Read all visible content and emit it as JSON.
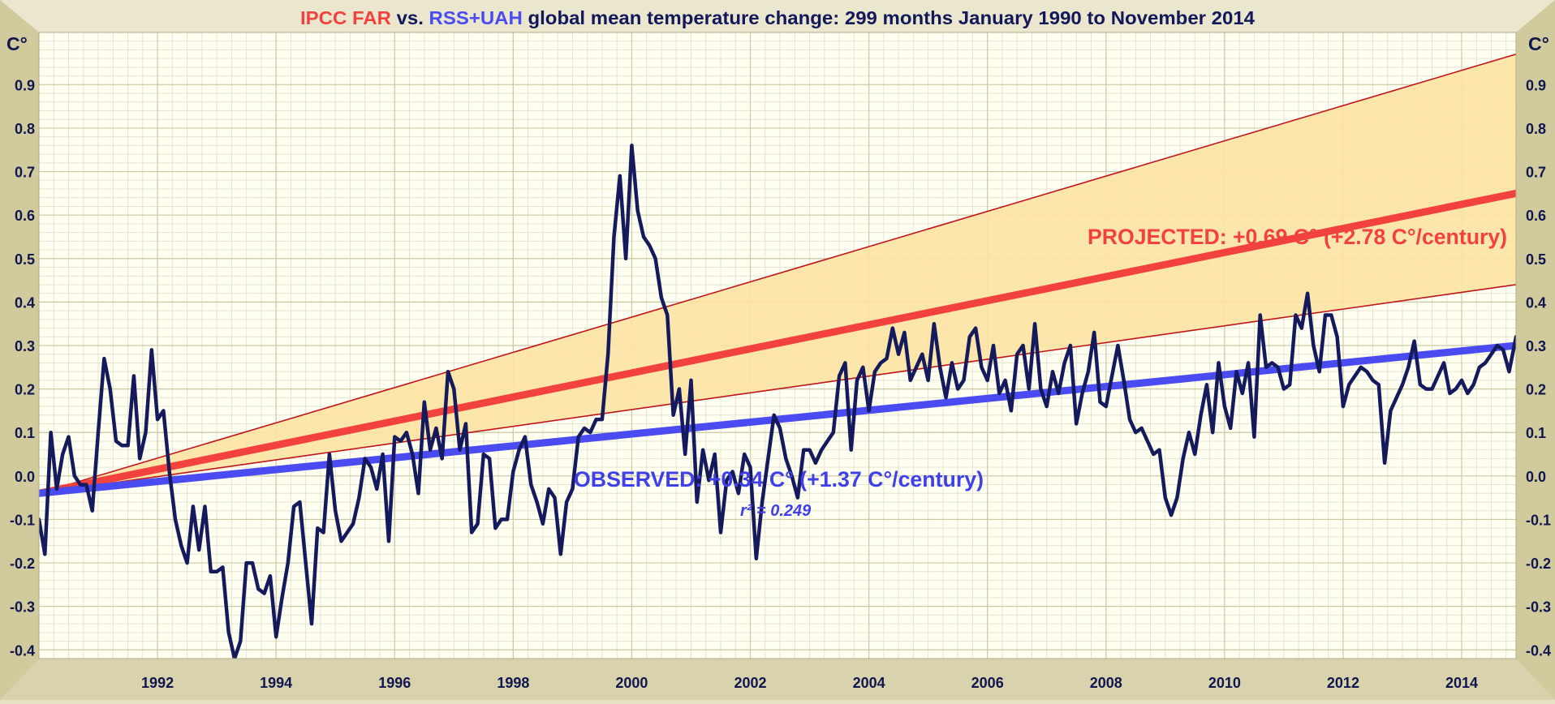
{
  "title": {
    "part1": "IPCC FAR",
    "part2": " vs. ",
    "part3": "RSS+UAH",
    "part4": " global mean temperature change: 299 months January 1990 to November 2014"
  },
  "unit_label": "C°",
  "colors": {
    "frame": "#d2cc9f",
    "plot_bg": "#fffff2",
    "grid_minor": "#e6e4cf",
    "grid_major": "#cdc9a5",
    "band_fill": "#fde3a3",
    "band_edge": "#c0141b",
    "projection": "#f2423d",
    "observed_trend": "#4b4bf2",
    "observed_series": "#141a5c",
    "axis_text": "#10164f",
    "title_red": "#f2423d",
    "title_blue": "#4b4bf2",
    "title_navy": "#12185a",
    "annotation_blue": "#4040e8"
  },
  "chart_data": {
    "type": "line",
    "title": "IPCC FAR vs. RSS+UAH global mean temperature change: 299 months January 1990 to November 2014",
    "xlabel": "",
    "ylabel": "C°",
    "xlim": [
      1990.0,
      2014.917
    ],
    "ylim": [
      -0.42,
      1.02
    ],
    "grid": true,
    "x_ticks": [
      "1992",
      "1994",
      "1996",
      "1998",
      "2000",
      "2002",
      "2004",
      "2006",
      "2008",
      "2010",
      "2012",
      "2014"
    ],
    "y_ticks": [
      "-0.4",
      "-0.3",
      "-0.2",
      "-0.1",
      "0.0",
      "0.1",
      "0.2",
      "0.3",
      "0.4",
      "0.5",
      "0.6",
      "0.7",
      "0.8",
      "0.9"
    ],
    "projection_band": {
      "upper": [
        [
          1990.0,
          -0.04
        ],
        [
          2014.917,
          0.97
        ]
      ],
      "lower": [
        [
          1990.0,
          -0.04
        ],
        [
          2014.917,
          0.44
        ]
      ]
    },
    "projection_trend": [
      [
        1990.0,
        -0.04
      ],
      [
        2014.917,
        0.65
      ]
    ],
    "observed_trend": [
      [
        1990.0,
        -0.04
      ],
      [
        2014.917,
        0.3
      ]
    ],
    "series": [
      {
        "points": [
          [
            1990.0,
            -0.1
          ],
          [
            1990.1,
            -0.18
          ],
          [
            1990.2,
            0.1
          ],
          [
            1990.3,
            -0.03
          ],
          [
            1990.4,
            0.05
          ],
          [
            1990.5,
            0.09
          ],
          [
            1990.6,
            0.0
          ],
          [
            1990.7,
            -0.02
          ],
          [
            1990.8,
            -0.02
          ],
          [
            1990.9,
            -0.08
          ],
          [
            1991.0,
            0.1
          ],
          [
            1991.1,
            0.27
          ],
          [
            1991.2,
            0.2
          ],
          [
            1991.3,
            0.08
          ],
          [
            1991.4,
            0.07
          ],
          [
            1991.5,
            0.07
          ],
          [
            1991.6,
            0.23
          ],
          [
            1991.7,
            0.04
          ],
          [
            1991.8,
            0.1
          ],
          [
            1991.9,
            0.29
          ],
          [
            1992.0,
            0.13
          ],
          [
            1992.1,
            0.15
          ],
          [
            1992.2,
            0.01
          ],
          [
            1992.3,
            -0.1
          ],
          [
            1992.4,
            -0.16
          ],
          [
            1992.5,
            -0.2
          ],
          [
            1992.6,
            -0.07
          ],
          [
            1992.7,
            -0.17
          ],
          [
            1992.8,
            -0.07
          ],
          [
            1992.9,
            -0.22
          ],
          [
            1993.0,
            -0.22
          ],
          [
            1993.1,
            -0.21
          ],
          [
            1993.2,
            -0.36
          ],
          [
            1993.3,
            -0.42
          ],
          [
            1993.4,
            -0.38
          ],
          [
            1993.5,
            -0.2
          ],
          [
            1993.6,
            -0.2
          ],
          [
            1993.7,
            -0.26
          ],
          [
            1993.8,
            -0.27
          ],
          [
            1993.9,
            -0.23
          ],
          [
            1994.0,
            -0.37
          ],
          [
            1994.1,
            -0.28
          ],
          [
            1994.2,
            -0.2
          ],
          [
            1994.3,
            -0.07
          ],
          [
            1994.4,
            -0.06
          ],
          [
            1994.5,
            -0.2
          ],
          [
            1994.6,
            -0.34
          ],
          [
            1994.7,
            -0.12
          ],
          [
            1994.8,
            -0.13
          ],
          [
            1994.9,
            0.05
          ],
          [
            1995.0,
            -0.08
          ],
          [
            1995.1,
            -0.15
          ],
          [
            1995.2,
            -0.13
          ],
          [
            1995.3,
            -0.11
          ],
          [
            1995.4,
            -0.05
          ],
          [
            1995.5,
            0.04
          ],
          [
            1995.6,
            0.02
          ],
          [
            1995.7,
            -0.03
          ],
          [
            1995.8,
            0.05
          ],
          [
            1995.9,
            -0.15
          ],
          [
            1996.0,
            0.09
          ],
          [
            1996.1,
            0.08
          ],
          [
            1996.2,
            0.1
          ],
          [
            1996.3,
            0.05
          ],
          [
            1996.4,
            -0.04
          ],
          [
            1996.5,
            0.17
          ],
          [
            1996.6,
            0.06
          ],
          [
            1996.7,
            0.11
          ],
          [
            1996.8,
            0.04
          ],
          [
            1996.9,
            0.24
          ],
          [
            1997.0,
            0.2
          ],
          [
            1997.1,
            0.06
          ],
          [
            1997.2,
            0.12
          ],
          [
            1997.3,
            -0.13
          ],
          [
            1997.4,
            -0.11
          ],
          [
            1997.5,
            0.05
          ],
          [
            1997.6,
            0.04
          ],
          [
            1997.7,
            -0.12
          ],
          [
            1997.8,
            -0.1
          ],
          [
            1997.9,
            -0.1
          ],
          [
            1998.0,
            0.01
          ],
          [
            1998.1,
            0.06
          ],
          [
            1998.2,
            0.09
          ],
          [
            1998.3,
            -0.02
          ],
          [
            1998.4,
            -0.06
          ],
          [
            1998.5,
            -0.11
          ],
          [
            1998.6,
            -0.03
          ],
          [
            1998.7,
            -0.05
          ],
          [
            1998.8,
            -0.18
          ],
          [
            1998.9,
            -0.06
          ],
          [
            1999.0,
            -0.03
          ],
          [
            1999.1,
            0.09
          ],
          [
            1999.2,
            0.11
          ],
          [
            1999.3,
            0.1
          ],
          [
            1999.4,
            0.13
          ],
          [
            1999.5,
            0.13
          ],
          [
            1999.6,
            0.28
          ],
          [
            1999.7,
            0.55
          ],
          [
            1999.8,
            0.69
          ],
          [
            1999.9,
            0.5
          ],
          [
            2000.0,
            0.76
          ],
          [
            2000.1,
            0.61
          ],
          [
            2000.2,
            0.55
          ],
          [
            2000.3,
            0.53
          ],
          [
            2000.4,
            0.5
          ],
          [
            2000.5,
            0.41
          ],
          [
            2000.6,
            0.37
          ],
          [
            2000.7,
            0.14
          ],
          [
            2000.8,
            0.2
          ],
          [
            2000.9,
            0.05
          ],
          [
            2001.0,
            0.22
          ],
          [
            2001.1,
            -0.06
          ],
          [
            2001.2,
            0.06
          ],
          [
            2001.3,
            -0.01
          ],
          [
            2001.4,
            0.05
          ],
          [
            2001.5,
            -0.13
          ],
          [
            2001.6,
            -0.01
          ],
          [
            2001.7,
            0.01
          ],
          [
            2001.8,
            -0.04
          ],
          [
            2001.9,
            0.05
          ],
          [
            2002.0,
            0.02
          ],
          [
            2002.1,
            -0.19
          ],
          [
            2002.2,
            -0.06
          ],
          [
            2002.3,
            0.04
          ],
          [
            2002.4,
            0.14
          ],
          [
            2002.5,
            0.11
          ],
          [
            2002.6,
            0.04
          ],
          [
            2002.7,
            0.0
          ],
          [
            2002.8,
            -0.05
          ],
          [
            2002.9,
            0.06
          ],
          [
            2003.0,
            0.06
          ],
          [
            2003.1,
            0.03
          ],
          [
            2003.2,
            0.06
          ],
          [
            2003.3,
            0.08
          ],
          [
            2003.4,
            0.1
          ],
          [
            2003.5,
            0.23
          ],
          [
            2003.6,
            0.26
          ],
          [
            2003.7,
            0.06
          ],
          [
            2003.8,
            0.22
          ],
          [
            2003.9,
            0.25
          ],
          [
            2004.0,
            0.15
          ],
          [
            2004.1,
            0.24
          ],
          [
            2004.2,
            0.26
          ],
          [
            2004.3,
            0.27
          ],
          [
            2004.4,
            0.34
          ],
          [
            2004.5,
            0.28
          ],
          [
            2004.6,
            0.33
          ],
          [
            2004.7,
            0.22
          ],
          [
            2004.8,
            0.25
          ],
          [
            2004.9,
            0.28
          ],
          [
            2005.0,
            0.22
          ],
          [
            2005.1,
            0.35
          ],
          [
            2005.2,
            0.25
          ],
          [
            2005.3,
            0.18
          ],
          [
            2005.4,
            0.26
          ],
          [
            2005.5,
            0.2
          ],
          [
            2005.6,
            0.22
          ],
          [
            2005.7,
            0.32
          ],
          [
            2005.8,
            0.34
          ],
          [
            2005.9,
            0.25
          ],
          [
            2006.0,
            0.22
          ],
          [
            2006.1,
            0.3
          ],
          [
            2006.2,
            0.19
          ],
          [
            2006.3,
            0.22
          ],
          [
            2006.4,
            0.15
          ],
          [
            2006.5,
            0.28
          ],
          [
            2006.6,
            0.3
          ],
          [
            2006.7,
            0.2
          ],
          [
            2006.8,
            0.35
          ],
          [
            2006.9,
            0.2
          ],
          [
            2007.0,
            0.16
          ],
          [
            2007.1,
            0.24
          ],
          [
            2007.2,
            0.19
          ],
          [
            2007.3,
            0.26
          ],
          [
            2007.4,
            0.3
          ],
          [
            2007.5,
            0.12
          ],
          [
            2007.6,
            0.19
          ],
          [
            2007.7,
            0.24
          ],
          [
            2007.8,
            0.33
          ],
          [
            2007.9,
            0.17
          ],
          [
            2008.0,
            0.16
          ],
          [
            2008.1,
            0.23
          ],
          [
            2008.2,
            0.3
          ],
          [
            2008.3,
            0.22
          ],
          [
            2008.4,
            0.13
          ],
          [
            2008.5,
            0.1
          ],
          [
            2008.6,
            0.11
          ],
          [
            2008.7,
            0.08
          ],
          [
            2008.8,
            0.05
          ],
          [
            2008.9,
            0.06
          ],
          [
            2009.0,
            -0.05
          ],
          [
            2009.1,
            -0.09
          ],
          [
            2009.2,
            -0.05
          ],
          [
            2009.3,
            0.04
          ],
          [
            2009.4,
            0.1
          ],
          [
            2009.5,
            0.05
          ],
          [
            2009.6,
            0.14
          ],
          [
            2009.7,
            0.21
          ],
          [
            2009.8,
            0.1
          ],
          [
            2009.9,
            0.26
          ],
          [
            2010.0,
            0.16
          ],
          [
            2010.1,
            0.11
          ],
          [
            2010.2,
            0.24
          ],
          [
            2010.3,
            0.19
          ],
          [
            2010.4,
            0.26
          ],
          [
            2010.5,
            0.09
          ],
          [
            2010.6,
            0.37
          ],
          [
            2010.7,
            0.25
          ],
          [
            2010.8,
            0.26
          ],
          [
            2010.9,
            0.25
          ],
          [
            2011.0,
            0.2
          ],
          [
            2011.1,
            0.21
          ],
          [
            2011.2,
            0.37
          ],
          [
            2011.3,
            0.34
          ],
          [
            2011.4,
            0.42
          ],
          [
            2011.5,
            0.3
          ],
          [
            2011.6,
            0.24
          ],
          [
            2011.7,
            0.37
          ],
          [
            2011.8,
            0.37
          ],
          [
            2011.9,
            0.32
          ],
          [
            2012.0,
            0.16
          ],
          [
            2012.1,
            0.21
          ],
          [
            2012.2,
            0.23
          ],
          [
            2012.3,
            0.25
          ],
          [
            2012.4,
            0.24
          ],
          [
            2012.5,
            0.22
          ],
          [
            2012.6,
            0.21
          ],
          [
            2012.7,
            0.03
          ],
          [
            2012.8,
            0.15
          ],
          [
            2012.9,
            0.18
          ],
          [
            2013.0,
            0.21
          ],
          [
            2013.1,
            0.25
          ],
          [
            2013.2,
            0.31
          ],
          [
            2013.3,
            0.21
          ],
          [
            2013.4,
            0.2
          ],
          [
            2013.5,
            0.2
          ],
          [
            2013.6,
            0.23
          ],
          [
            2013.7,
            0.26
          ],
          [
            2013.8,
            0.19
          ],
          [
            2013.9,
            0.2
          ],
          [
            2014.0,
            0.22
          ],
          [
            2014.1,
            0.19
          ],
          [
            2014.2,
            0.21
          ],
          [
            2014.3,
            0.25
          ],
          [
            2014.4,
            0.26
          ],
          [
            2014.5,
            0.28
          ],
          [
            2014.6,
            0.3
          ],
          [
            2014.7,
            0.29
          ],
          [
            2014.8,
            0.24
          ],
          [
            2014.917,
            0.32
          ]
        ]
      }
    ]
  },
  "annotations": {
    "projected": "PROJECTED: +0.69 C° (+2.78 C°/century)",
    "observed": "OBSERVED: +0.34 C° (+1.37 C°/century)",
    "r2": "r² = 0.249"
  }
}
